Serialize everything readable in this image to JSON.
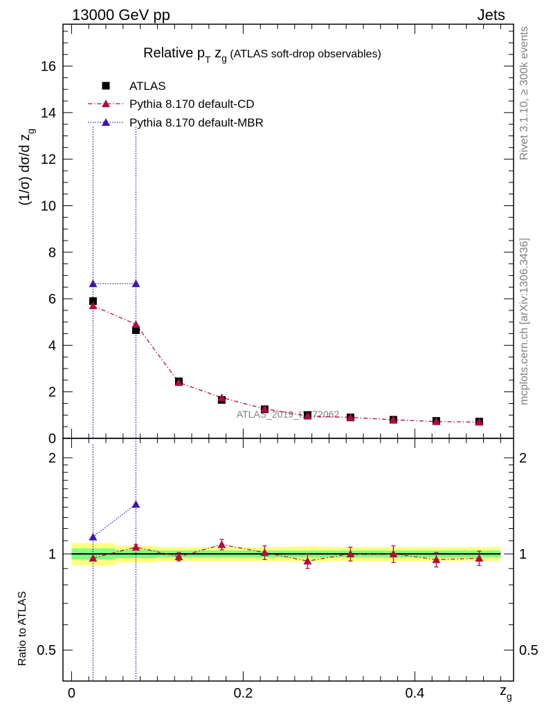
{
  "header": {
    "left": "13000 GeV pp",
    "right": "Jets"
  },
  "side_labels": {
    "rivet": "Rivet 3.1.10, ≥ 300k events",
    "mcplots": "mcplots.cern.ch [arXiv:1306.3436]"
  },
  "chart_data": {
    "type": "scatter",
    "title": {
      "main": "Relative p",
      "main_sub": "T",
      "var": " z",
      "var_sub": "g",
      "suffix": " (ATLAS soft-drop observables)"
    },
    "watermark": "ATLAS_2019_I1772062",
    "xlabel": {
      "main": "z",
      "sub": "g"
    },
    "ylabel": {
      "main": "(1/σ) dσ/d z",
      "sub": "g"
    },
    "ratio_ylabel": "Ratio to ATLAS",
    "xlim": [
      -0.01,
      0.515
    ],
    "ylim": [
      0,
      17.8
    ],
    "ratio_ylim": [
      0.4,
      2.3
    ],
    "x_ticks": [
      0,
      0.2,
      0.4
    ],
    "x_tick_labels": [
      "0",
      "0.2",
      "0.4"
    ],
    "y_ticks": [
      0,
      2,
      4,
      6,
      8,
      10,
      12,
      14,
      16
    ],
    "y_tick_labels": [
      "0",
      "2",
      "4",
      "6",
      "8",
      "10",
      "12",
      "14",
      "16"
    ],
    "ratio_ticks": [
      0.5,
      1,
      2
    ],
    "ratio_tick_labels": [
      "0.5",
      "1",
      "2"
    ],
    "x": [
      0.025,
      0.075,
      0.125,
      0.175,
      0.225,
      0.275,
      0.325,
      0.375,
      0.425,
      0.475
    ],
    "bin_edges": [
      0.0,
      0.05,
      0.1,
      0.15,
      0.2,
      0.25,
      0.3,
      0.35,
      0.4,
      0.45,
      0.5
    ],
    "band_inner": [
      0.04,
      0.03,
      0.025,
      0.025,
      0.025,
      0.025,
      0.025,
      0.025,
      0.025,
      0.025
    ],
    "band_outer": [
      0.08,
      0.06,
      0.05,
      0.05,
      0.05,
      0.055,
      0.05,
      0.05,
      0.05,
      0.05
    ],
    "series": [
      {
        "name": "ATLAS",
        "marker": "square",
        "color": "#000000",
        "values": [
          5.9,
          4.65,
          2.45,
          1.65,
          1.25,
          1.0,
          0.9,
          0.8,
          0.75,
          0.72
        ]
      },
      {
        "name": "Pythia 8.170 default-CD",
        "marker": "triangle",
        "color": "#b40a3c",
        "linestyle": "dashdot",
        "values": [
          5.7,
          4.9,
          2.4,
          1.75,
          1.27,
          0.96,
          0.9,
          0.8,
          0.72,
          0.7
        ],
        "ratio": [
          0.97,
          1.05,
          0.98,
          1.07,
          1.01,
          0.95,
          1.0,
          1.0,
          0.96,
          0.97
        ],
        "ratio_err": [
          0.0,
          0.02,
          0.03,
          0.04,
          0.05,
          0.05,
          0.05,
          0.06,
          0.05,
          0.05
        ]
      },
      {
        "name": "Pythia 8.170 default-MBR",
        "marker": "triangle",
        "color": "#3c14b4",
        "linestyle": "dotted",
        "values": [
          6.65,
          6.65
        ],
        "err_high": [
          13.4,
          13.4
        ],
        "err_low": [
          0,
          0
        ],
        "ratio": [
          1.13,
          1.43
        ],
        "ratio_err_high": [
          2.2,
          2.3
        ],
        "ratio_err_low": [
          0.4,
          0.4
        ]
      }
    ],
    "legend_position": "top-left"
  }
}
